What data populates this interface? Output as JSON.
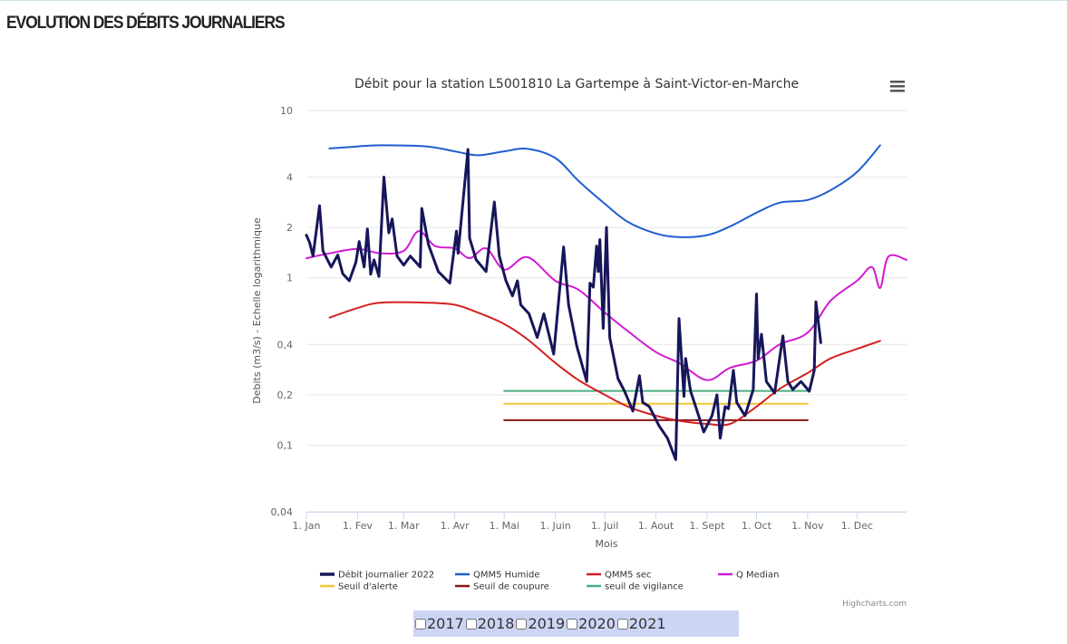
{
  "page": {
    "title": "EVOLUTION DES DÉBITS JOURNALIERS"
  },
  "menu_icon": "hamburger-menu-icon",
  "credits": "Highcharts.com",
  "year_options": [
    {
      "label": "2017",
      "checked": false
    },
    {
      "label": "2018",
      "checked": false
    },
    {
      "label": "2019",
      "checked": false
    },
    {
      "label": "2020",
      "checked": false
    },
    {
      "label": "2021",
      "checked": false
    }
  ],
  "chart_data": {
    "type": "line",
    "title": "Débit pour la station L5001810 La Gartempe à Saint-Victor-en-Marche",
    "xlabel": "Mois",
    "ylabel": "Debits (m3/s) - Echelle logarithmique",
    "yscale": "log",
    "xlim": [
      "2022-01-01",
      "2022-12-31"
    ],
    "ylim": [
      0.04,
      10
    ],
    "yticks": [
      0.04,
      0.1,
      0.2,
      0.4,
      1,
      2,
      4,
      10
    ],
    "ytick_labels": [
      "0,04",
      "0,1",
      "0,2",
      "0,4",
      "1",
      "2",
      "4",
      "10"
    ],
    "xticks": [
      "2022-01-01",
      "2022-02-01",
      "2022-03-01",
      "2022-04-01",
      "2022-05-01",
      "2022-06-01",
      "2022-07-01",
      "2022-08-01",
      "2022-09-01",
      "2022-10-01",
      "2022-11-01",
      "2022-12-01"
    ],
    "xtick_labels": [
      "1. Jan",
      "1. Fev",
      "1. Mar",
      "1. Avr",
      "1. Mai",
      "1. Juin",
      "1. Juil",
      "1. Aout",
      "1. Sept",
      "1. Oct",
      "1. Nov",
      "1. Dec"
    ],
    "grid": true,
    "legend_position": "bottom",
    "series": [
      {
        "name": "Débit journalier 2022",
        "color": "#16165a",
        "width": 3,
        "smooth": false,
        "points": [
          [
            "01-01",
            1.8
          ],
          [
            "01-03",
            1.62
          ],
          [
            "01-05",
            1.35
          ],
          [
            "01-09",
            2.7
          ],
          [
            "01-11",
            1.45
          ],
          [
            "01-16",
            1.16
          ],
          [
            "01-20",
            1.37
          ],
          [
            "01-23",
            1.06
          ],
          [
            "01-27",
            0.96
          ],
          [
            "01-31",
            1.24
          ],
          [
            "02-02",
            1.65
          ],
          [
            "02-05",
            1.16
          ],
          [
            "02-07",
            1.96
          ],
          [
            "02-09",
            1.05
          ],
          [
            "02-11",
            1.28
          ],
          [
            "02-14",
            1.02
          ],
          [
            "02-17",
            4.0
          ],
          [
            "02-20",
            1.86
          ],
          [
            "02-22",
            2.25
          ],
          [
            "02-25",
            1.35
          ],
          [
            "03-01",
            1.19
          ],
          [
            "03-05",
            1.35
          ],
          [
            "03-11",
            1.16
          ],
          [
            "03-12",
            2.6
          ],
          [
            "03-16",
            1.58
          ],
          [
            "03-22",
            1.09
          ],
          [
            "03-29",
            0.93
          ],
          [
            "04-02",
            1.9
          ],
          [
            "04-03",
            1.4
          ],
          [
            "04-09",
            5.85
          ],
          [
            "04-10",
            1.73
          ],
          [
            "04-14",
            1.28
          ],
          [
            "04-20",
            1.09
          ],
          [
            "04-25",
            2.84
          ],
          [
            "04-28",
            1.35
          ],
          [
            "05-02",
            0.96
          ],
          [
            "05-06",
            0.78
          ],
          [
            "05-09",
            0.96
          ],
          [
            "05-11",
            0.69
          ],
          [
            "05-16",
            0.61
          ],
          [
            "05-21",
            0.44
          ],
          [
            "05-25",
            0.61
          ],
          [
            "05-31",
            0.35
          ],
          [
            "06-06",
            1.53
          ],
          [
            "06-09",
            0.69
          ],
          [
            "06-14",
            0.39
          ],
          [
            "06-20",
            0.24
          ],
          [
            "06-22",
            0.93
          ],
          [
            "06-24",
            0.88
          ],
          [
            "06-26",
            1.55
          ],
          [
            "06-27",
            1.09
          ],
          [
            "06-28",
            1.69
          ],
          [
            "06-30",
            0.5
          ],
          [
            "07-02",
            2.0
          ],
          [
            "07-04",
            0.44
          ],
          [
            "07-09",
            0.25
          ],
          [
            "07-13",
            0.21
          ],
          [
            "07-18",
            0.16
          ],
          [
            "07-22",
            0.26
          ],
          [
            "07-24",
            0.18
          ],
          [
            "07-28",
            0.17
          ],
          [
            "08-03",
            0.13
          ],
          [
            "08-08",
            0.11
          ],
          [
            "08-13",
            0.082
          ],
          [
            "08-15",
            0.57
          ],
          [
            "08-18",
            0.196
          ],
          [
            "08-19",
            0.33
          ],
          [
            "08-22",
            0.21
          ],
          [
            "08-26",
            0.16
          ],
          [
            "08-30",
            0.12
          ],
          [
            "09-04",
            0.15
          ],
          [
            "09-07",
            0.2
          ],
          [
            "09-09",
            0.11
          ],
          [
            "09-12",
            0.17
          ],
          [
            "09-14",
            0.165
          ],
          [
            "09-17",
            0.28
          ],
          [
            "09-19",
            0.18
          ],
          [
            "09-24",
            0.15
          ],
          [
            "09-29",
            0.215
          ],
          [
            "10-01",
            0.8
          ],
          [
            "10-02",
            0.33
          ],
          [
            "10-04",
            0.46
          ],
          [
            "10-07",
            0.24
          ],
          [
            "10-12",
            0.205
          ],
          [
            "10-17",
            0.45
          ],
          [
            "10-20",
            0.24
          ],
          [
            "10-23",
            0.215
          ],
          [
            "10-28",
            0.24
          ],
          [
            "11-02",
            0.21
          ],
          [
            "11-05",
            0.28
          ],
          [
            "11-06",
            0.72
          ],
          [
            "11-09",
            0.41
          ]
        ]
      },
      {
        "name": "QMM5 Humide",
        "color": "#1f5fd0",
        "width": 2,
        "smooth": true,
        "points": [
          [
            "01-15",
            5.93
          ],
          [
            "02-01",
            6.1
          ],
          [
            "02-15",
            6.2
          ],
          [
            "03-15",
            6.1
          ],
          [
            "04-01",
            5.7
          ],
          [
            "04-15",
            5.4
          ],
          [
            "05-01",
            5.7
          ],
          [
            "05-15",
            5.9
          ],
          [
            "06-01",
            5.2
          ],
          [
            "06-15",
            3.8
          ],
          [
            "07-01",
            2.77
          ],
          [
            "07-15",
            2.16
          ],
          [
            "08-01",
            1.84
          ],
          [
            "08-15",
            1.75
          ],
          [
            "09-01",
            1.8
          ],
          [
            "09-15",
            2.03
          ],
          [
            "10-01",
            2.45
          ],
          [
            "10-15",
            2.81
          ],
          [
            "11-01",
            2.92
          ],
          [
            "11-15",
            3.34
          ],
          [
            "12-01",
            4.29
          ],
          [
            "12-15",
            6.2
          ]
        ]
      },
      {
        "name": "QMM5 sec",
        "color": "#d42020",
        "width": 2,
        "smooth": true,
        "points": [
          [
            "01-15",
            0.578
          ],
          [
            "02-01",
            0.66
          ],
          [
            "02-15",
            0.71
          ],
          [
            "03-15",
            0.71
          ],
          [
            "04-01",
            0.69
          ],
          [
            "04-15",
            0.62
          ],
          [
            "05-01",
            0.53
          ],
          [
            "05-15",
            0.43
          ],
          [
            "06-01",
            0.31
          ],
          [
            "06-15",
            0.245
          ],
          [
            "07-01",
            0.2
          ],
          [
            "07-15",
            0.17
          ],
          [
            "08-01",
            0.15
          ],
          [
            "08-15",
            0.14
          ],
          [
            "09-01",
            0.134
          ],
          [
            "09-15",
            0.134
          ],
          [
            "10-01",
            0.17
          ],
          [
            "10-15",
            0.217
          ],
          [
            "11-01",
            0.27
          ],
          [
            "11-15",
            0.33
          ],
          [
            "12-01",
            0.376
          ],
          [
            "12-15",
            0.42
          ]
        ]
      },
      {
        "name": "Q Median",
        "color": "#d21ad2",
        "width": 2,
        "smooth": true,
        "points": [
          [
            "01-01",
            1.31
          ],
          [
            "01-15",
            1.4
          ],
          [
            "02-01",
            1.49
          ],
          [
            "02-15",
            1.4
          ],
          [
            "03-01",
            1.45
          ],
          [
            "03-10",
            1.9
          ],
          [
            "03-20",
            1.55
          ],
          [
            "04-01",
            1.5
          ],
          [
            "04-10",
            1.31
          ],
          [
            "04-20",
            1.5
          ],
          [
            "05-01",
            1.12
          ],
          [
            "05-15",
            1.33
          ],
          [
            "06-01",
            0.96
          ],
          [
            "06-15",
            0.85
          ],
          [
            "07-01",
            0.62
          ],
          [
            "07-15",
            0.48
          ],
          [
            "08-01",
            0.36
          ],
          [
            "08-15",
            0.31
          ],
          [
            "09-01",
            0.245
          ],
          [
            "09-15",
            0.29
          ],
          [
            "10-01",
            0.32
          ],
          [
            "10-15",
            0.4
          ],
          [
            "11-01",
            0.47
          ],
          [
            "11-15",
            0.73
          ],
          [
            "12-01",
            0.96
          ],
          [
            "12-10",
            1.16
          ],
          [
            "12-15",
            0.87
          ],
          [
            "12-20",
            1.34
          ],
          [
            "12-31",
            1.28
          ]
        ]
      },
      {
        "name": "Seuil d'alerte",
        "color": "#f5c63c",
        "width": 2,
        "smooth": false,
        "points": [
          [
            "05-01",
            0.177
          ],
          [
            "11-01",
            0.177
          ]
        ]
      },
      {
        "name": "Seuil de coupure",
        "color": "#8b1616",
        "width": 2,
        "smooth": false,
        "points": [
          [
            "05-01",
            0.141
          ],
          [
            "11-01",
            0.141
          ]
        ]
      },
      {
        "name": "seuil de vigilance",
        "color": "#4caf82",
        "width": 2,
        "smooth": false,
        "points": [
          [
            "05-01",
            0.211
          ],
          [
            "11-01",
            0.211
          ]
        ]
      }
    ]
  }
}
